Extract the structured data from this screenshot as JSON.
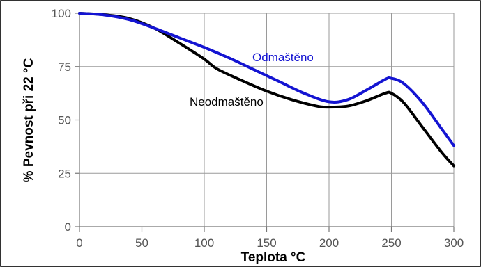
{
  "chart_data": {
    "type": "line",
    "xlabel": "Teplota °C",
    "ylabel": "% Pevnost při 22 °C",
    "xlim": [
      0,
      300
    ],
    "ylim": [
      0,
      100
    ],
    "xticks": [
      0,
      50,
      100,
      150,
      200,
      250,
      300
    ],
    "yticks": [
      0,
      25,
      50,
      75,
      100
    ],
    "grid": true,
    "series": [
      {
        "name": "Odmaštěno",
        "color": "#1414d2",
        "x": [
          0,
          20,
          40,
          60,
          80,
          100,
          120,
          140,
          160,
          180,
          200,
          215,
          230,
          245,
          250,
          260,
          275,
          290,
          300
        ],
        "y": [
          100,
          99.2,
          97,
          93,
          88.5,
          84,
          79,
          73.5,
          68,
          62.5,
          58.5,
          59.5,
          64,
          69,
          69.5,
          67,
          58,
          46,
          38
        ]
      },
      {
        "name": "Neodmaštěno",
        "color": "#000000",
        "x": [
          0,
          20,
          40,
          60,
          80,
          100,
          110,
          130,
          150,
          170,
          190,
          200,
          215,
          230,
          245,
          250,
          260,
          275,
          290,
          300
        ],
        "y": [
          100,
          99.3,
          97.5,
          93,
          86,
          78.5,
          74,
          68.5,
          63.5,
          59.5,
          56.5,
          56,
          56.5,
          59,
          62.5,
          62.5,
          58,
          46.5,
          35,
          28.5
        ]
      }
    ]
  }
}
